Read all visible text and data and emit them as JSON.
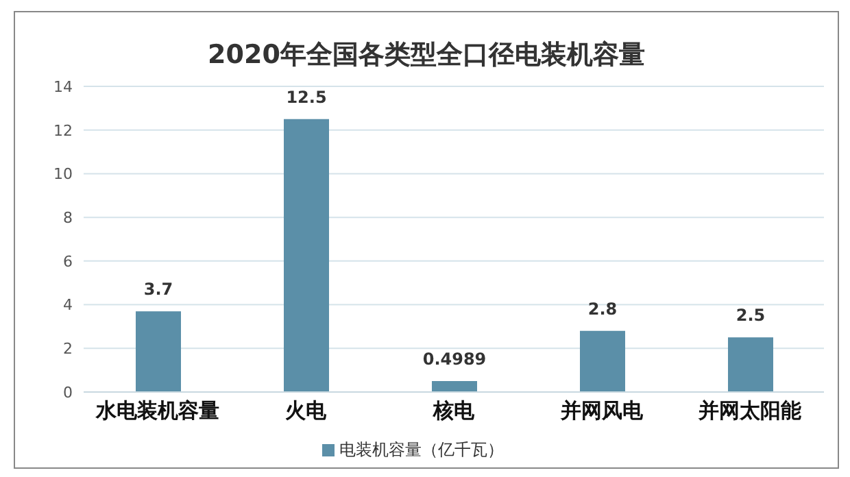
{
  "chart_data": {
    "type": "bar",
    "title": "2020年全国各类型全口径电装机容量",
    "categories": [
      "水电装机容量",
      "火电",
      "核电",
      "并网风电",
      "并网太阳能"
    ],
    "series": [
      {
        "name": "电装机容量（亿千瓦）",
        "color": "#5b8fa8",
        "values": [
          3.7,
          12.5,
          0.4989,
          2.8,
          2.5
        ]
      }
    ],
    "ylim": [
      0,
      14
    ],
    "yticks": [
      0,
      2,
      4,
      6,
      8,
      10,
      12,
      14
    ],
    "grid": "y",
    "legend": "bottom",
    "data_labels": true
  }
}
